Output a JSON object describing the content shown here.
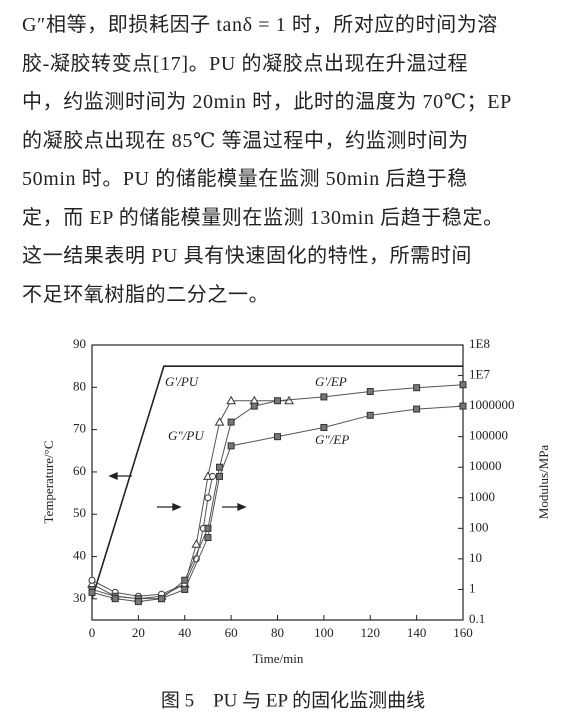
{
  "paragraph": {
    "lines": [
      "G″相等，即损耗因子 tanδ = 1 时，所对应的时间为溶",
      "胶-凝胶转变点[17]。PU 的凝胶点出现在升温过程",
      "中，约监测时间为 20min 时，此时的温度为 70℃；EP",
      "的凝胶点出现在 85℃ 等温过程中，约监测时间为",
      "50min 时。PU 的储能模量在监测 50min 后趋于稳",
      "定，而 EP 的储能模量则在监测 130min 后趋于稳定。",
      "这一结果表明 PU 具有快速固化的特性，所需时间",
      "不足环氧树脂的二分之一。"
    ]
  },
  "chart_data": {
    "type": "line",
    "xlabel": "Time/min",
    "ylabel": "Temperature/°C",
    "y2label": "Modulus/MPa",
    "xlim": [
      0,
      160
    ],
    "xticks": [
      0,
      20,
      40,
      60,
      80,
      100,
      120,
      140,
      160
    ],
    "ylim": [
      25,
      90
    ],
    "yticks": [
      30,
      40,
      50,
      60,
      70,
      80,
      90
    ],
    "y2lim": [
      0.1,
      100000000
    ],
    "y2log": true,
    "y2ticks": [
      0.1,
      1,
      10,
      100,
      1000,
      10000,
      100000,
      1000000,
      {
        "value": 10000000,
        "label": "1E7"
      },
      {
        "value": 100000000,
        "label": "1E8"
      }
    ],
    "temperature": {
      "x": [
        0,
        31,
        160
      ],
      "values": [
        30,
        85,
        85
      ]
    },
    "series": [
      {
        "name": "G′/PU",
        "axis": "y2",
        "marker": "triangle",
        "x": [
          0,
          10,
          20,
          30,
          40,
          45,
          50,
          55,
          60,
          70,
          85
        ],
        "values": [
          1.5,
          0.6,
          0.5,
          0.6,
          1.5,
          30,
          5000,
          300000,
          1500000,
          1500000,
          1500000
        ]
      },
      {
        "name": "G″/PU",
        "axis": "y2",
        "marker": "circle",
        "x": [
          0,
          10,
          20,
          30,
          40,
          45,
          48,
          50,
          52
        ],
        "values": [
          2,
          0.8,
          0.6,
          0.7,
          1.5,
          10,
          100,
          1000,
          5000
        ]
      },
      {
        "name": "G′/EP",
        "axis": "y2",
        "marker": "square",
        "x": [
          0,
          10,
          20,
          30,
          40,
          50,
          55,
          60,
          70,
          80,
          100,
          120,
          140,
          160
        ],
        "values": [
          1,
          0.6,
          0.5,
          0.5,
          2,
          100,
          10000,
          300000,
          1000000,
          1500000,
          2000000,
          3000000,
          4000000,
          5000000
        ]
      },
      {
        "name": "G″/EP",
        "axis": "y2",
        "marker": "square",
        "x": [
          0,
          10,
          20,
          30,
          40,
          50,
          55,
          60,
          80,
          100,
          120,
          140,
          160
        ],
        "values": [
          0.8,
          0.5,
          0.4,
          0.5,
          1,
          50,
          5000,
          50000,
          100000,
          200000,
          500000,
          800000,
          1000000
        ]
      }
    ],
    "caption": "图 5　PU 与 EP 的固化监测曲线"
  }
}
